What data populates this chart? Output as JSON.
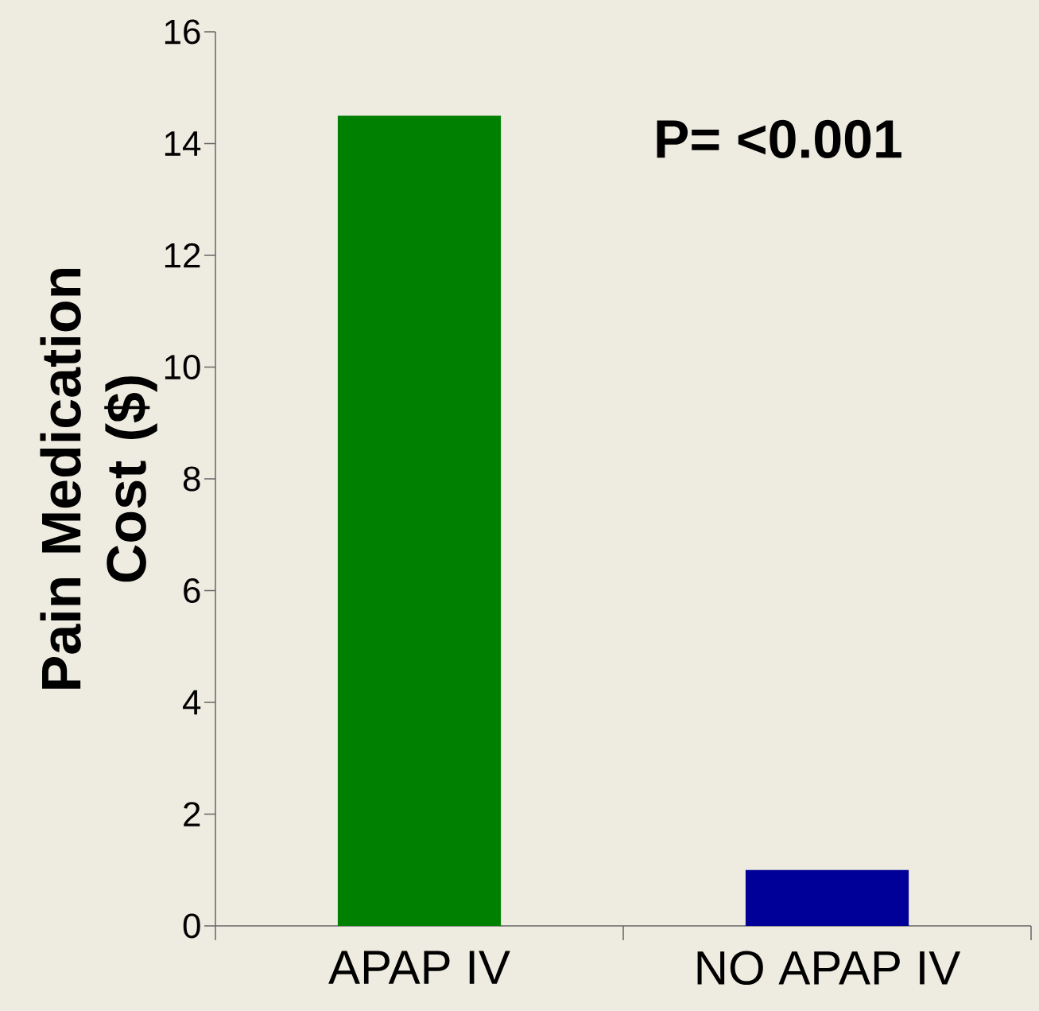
{
  "chart_data": {
    "type": "bar",
    "categories": [
      "APAP IV",
      "NO APAP IV"
    ],
    "values": [
      14.5,
      1.0
    ],
    "colors": [
      "#008000",
      "#000099"
    ],
    "ylabel": "Pain Medication Cost ($)",
    "ylim": [
      0,
      16
    ],
    "yticks": [
      0,
      2,
      4,
      6,
      8,
      10,
      12,
      14,
      16
    ],
    "annotations": [
      "P= <0.001"
    ]
  }
}
